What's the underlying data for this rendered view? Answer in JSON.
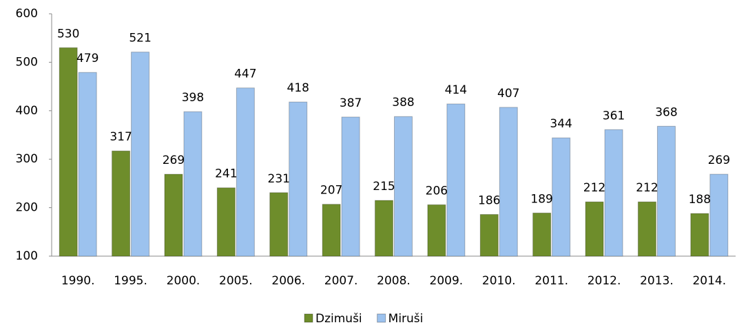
{
  "chart_data": {
    "type": "bar",
    "categories": [
      "1990.",
      "1995.",
      "2000.",
      "2005.",
      "2006.",
      "2007.",
      "2008.",
      "2009.",
      "2010.",
      "2011.",
      "2012.",
      "2013.",
      "2014."
    ],
    "series": [
      {
        "name": "Dzimuši",
        "color": "#6e8d2b",
        "values": [
          530,
          317,
          269,
          241,
          231,
          207,
          215,
          206,
          186,
          189,
          212,
          212,
          188
        ]
      },
      {
        "name": "Miruši",
        "color": "#9cc2ee",
        "values": [
          479,
          521,
          398,
          447,
          418,
          387,
          388,
          414,
          407,
          344,
          361,
          368,
          269
        ]
      }
    ],
    "ylim": [
      100,
      600
    ],
    "yticks": [
      100,
      200,
      300,
      400,
      500,
      600
    ],
    "grid": false,
    "legend": "bottom"
  }
}
